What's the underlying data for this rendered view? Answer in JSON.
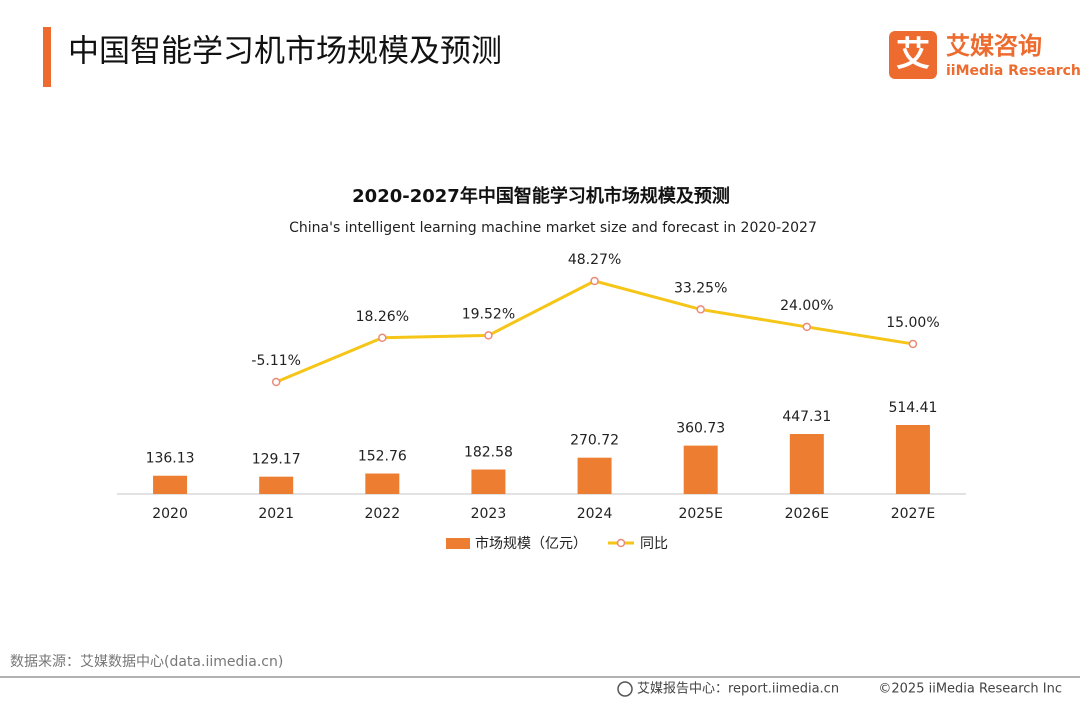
{
  "header": {
    "title": "中国智能学习机市场规模及预测"
  },
  "logo": {
    "icon": "艾",
    "name": "艾媒咨询",
    "sub": "iiMedia Research"
  },
  "chart_data": {
    "type": "bar",
    "title": "2020-2027年中国智能学习机市场规模及预测",
    "subtitle": "China's intelligent learning machine market size and forecast in 2020-2027",
    "categories": [
      "2020",
      "2021",
      "2022",
      "2023",
      "2024",
      "2025E",
      "2026E",
      "2027E"
    ],
    "series": [
      {
        "name": "市场规模（亿元）",
        "type": "bar",
        "color": "#ed7d31",
        "values": [
          136.13,
          129.17,
          152.76,
          182.58,
          270.72,
          360.73,
          447.31,
          514.41
        ],
        "value_labels": [
          "136.13",
          "129.17",
          "152.76",
          "182.58",
          "270.72",
          "360.73",
          "447.31",
          "514.41"
        ]
      },
      {
        "name": "同比",
        "type": "line",
        "color": "#f5c518",
        "marker_color": "#ec8a7a",
        "values": [
          null,
          -5.11,
          18.26,
          19.52,
          48.27,
          33.25,
          24.0,
          15.0
        ],
        "value_labels": [
          null,
          "-5.11%",
          "18.26%",
          "19.52%",
          "48.27%",
          "33.25%",
          "24.00%",
          "15.00%"
        ]
      }
    ]
  },
  "source": "数据来源：艾媒数据中心(data.iimedia.cn)",
  "footer": {
    "report": "艾媒报告中心：report.iimedia.cn",
    "copyright": "©2025  iiMedia Research  Inc"
  }
}
